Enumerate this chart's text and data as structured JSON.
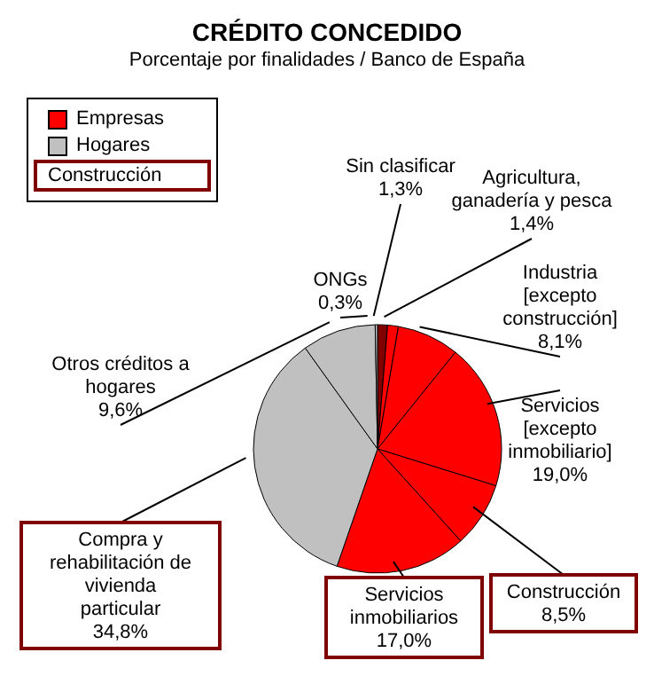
{
  "chart_data": {
    "type": "pie",
    "title": "CRÉDITO CONCEDIDO",
    "subtitle": "Porcentaje por finalidades / Banco de España",
    "categories": [
      "Sin clasificar",
      "Agricultura, ganadería y pesca",
      "Industria [excepto construcción]",
      "Servicios [excepto inmobiliario]",
      "Construcción",
      "Servicios inmobiliarios",
      "Compra y rehabilitación de vivienda particular",
      "Otros créditos a hogares",
      "ONGs"
    ],
    "values": [
      1.3,
      1.4,
      8.1,
      19.0,
      8.5,
      17.0,
      34.8,
      9.6,
      0.3
    ],
    "value_labels": [
      "1,3%",
      "1,4%",
      "8,1%",
      "19,0%",
      "8,5%",
      "17,0%",
      "34,8%",
      "9,6%",
      "0,3%"
    ],
    "colors": [
      "#800000",
      "#ff0000",
      "#ff0000",
      "#ff0000",
      "#ff0000",
      "#ff0000",
      "#c0c0c0",
      "#c0c0c0",
      "#c0c0c0"
    ],
    "annotations": [
      "Empresas",
      "Hogares",
      "Construcción"
    ]
  }
}
